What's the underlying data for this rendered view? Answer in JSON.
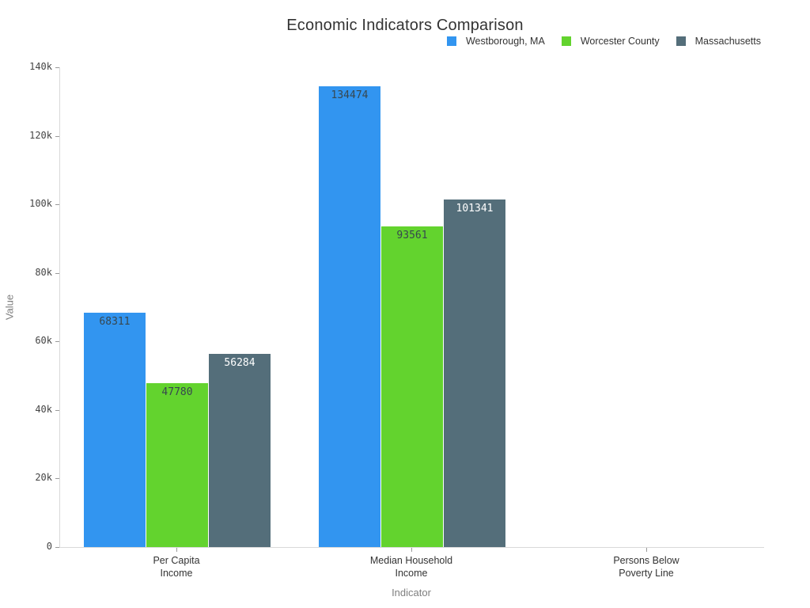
{
  "chart_data": {
    "type": "bar",
    "title": "Economic Indicators Comparison",
    "xlabel": "Indicator",
    "ylabel": "Value",
    "ylim": [
      0,
      140000
    ],
    "grid": false,
    "legend_position": "top-right",
    "background_color": "#ffffff",
    "yticks": [
      {
        "value": 0,
        "label": "0"
      },
      {
        "value": 20000,
        "label": "20k"
      },
      {
        "value": 40000,
        "label": "40k"
      },
      {
        "value": 60000,
        "label": "60k"
      },
      {
        "value": 80000,
        "label": "80k"
      },
      {
        "value": 100000,
        "label": "100k"
      },
      {
        "value": 120000,
        "label": "120k"
      },
      {
        "value": 140000,
        "label": "140k"
      }
    ],
    "categories": [
      [
        "Per Capita",
        "Income"
      ],
      [
        "Median Household",
        "Income"
      ],
      [
        "Persons Below",
        "Poverty Line"
      ]
    ],
    "series": [
      {
        "name": "Westborough, MA",
        "color": "#3295f0",
        "label_color": "#37474f",
        "values": [
          68311,
          134474,
          0
        ]
      },
      {
        "name": "Worcester County",
        "color": "#63d32e",
        "label_color": "#37474f",
        "values": [
          47780,
          93561,
          0
        ]
      },
      {
        "name": "Massachusetts",
        "color": "#546e7a",
        "label_color": "#ffffff",
        "values": [
          56284,
          101341,
          0
        ]
      }
    ],
    "colors": {
      "axis_line": "#d9d9d9",
      "tick_mark": "#999999",
      "tick_label": "#444444",
      "category_label": "#333333",
      "axis_title": "#7f7f7f",
      "title": "#333333"
    }
  }
}
